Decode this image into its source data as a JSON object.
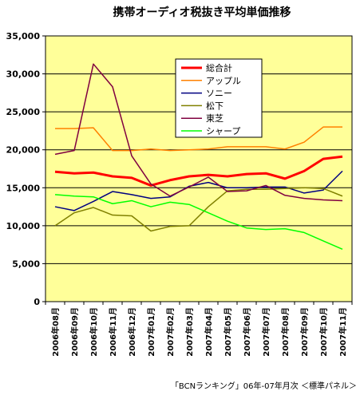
{
  "chart_data": {
    "type": "line",
    "title": "携帯オーディオ税抜き平均単価推移",
    "source_note": "「BCNランキング」06年-07年月次 ＜標準パネル＞",
    "ylim": [
      0,
      35000
    ],
    "yticks": [
      "0",
      "5,000",
      "10,000",
      "15,000",
      "20,000",
      "25,000",
      "30,000",
      "35,000"
    ],
    "ytick_values": [
      0,
      5000,
      10000,
      15000,
      20000,
      25000,
      30000,
      35000
    ],
    "grid": true,
    "legend_position": "top-center",
    "colors": {
      "plot_bg": "#ffff99",
      "grid": "#000000"
    },
    "categories": [
      "2006年08月",
      "2006年09月",
      "2006年10月",
      "2006年11月",
      "2006年12月",
      "2007年01月",
      "2007年02月",
      "2007年03月",
      "2007年04月",
      "2007年05月",
      "2007年06月",
      "2007年07月",
      "2007年08月",
      "2007年09月",
      "2007年10月",
      "2007年11月"
    ],
    "series": [
      {
        "name": "総合計",
        "color": "#ff0000",
        "width": 3,
        "values": [
          17100,
          16900,
          17000,
          16500,
          16300,
          15300,
          16000,
          16500,
          16700,
          16500,
          16800,
          16900,
          16200,
          17200,
          18800,
          19100
        ]
      },
      {
        "name": "アップル",
        "color": "#ff8000",
        "width": 1.5,
        "values": [
          22800,
          22800,
          22900,
          19900,
          19900,
          20100,
          19900,
          20000,
          20100,
          20400,
          20400,
          20400,
          20100,
          21000,
          23000,
          23000
        ]
      },
      {
        "name": "ソニー",
        "color": "#000080",
        "width": 1.5,
        "values": [
          12500,
          12000,
          13200,
          14500,
          14100,
          13600,
          13800,
          15200,
          15700,
          15000,
          15000,
          15100,
          15100,
          14300,
          14700,
          17200
        ]
      },
      {
        "name": "松下",
        "color": "#808000",
        "width": 1.5,
        "values": [
          10000,
          11700,
          12400,
          11400,
          11300,
          9300,
          9900,
          10000,
          12500,
          14600,
          14800,
          14800,
          14900,
          15000,
          14900,
          13900
        ]
      },
      {
        "name": "東芝",
        "color": "#800040",
        "width": 1.5,
        "values": [
          19400,
          19900,
          31300,
          28300,
          19200,
          15500,
          13900,
          15100,
          16400,
          14500,
          14600,
          15300,
          14000,
          13600,
          13400,
          13300
        ]
      },
      {
        "name": "シャープ",
        "color": "#00ff00",
        "width": 1.5,
        "values": [
          14100,
          13900,
          13800,
          12900,
          13300,
          12500,
          13100,
          12800,
          11700,
          10600,
          9700,
          9500,
          9600,
          9100,
          8000,
          6900
        ]
      }
    ]
  }
}
